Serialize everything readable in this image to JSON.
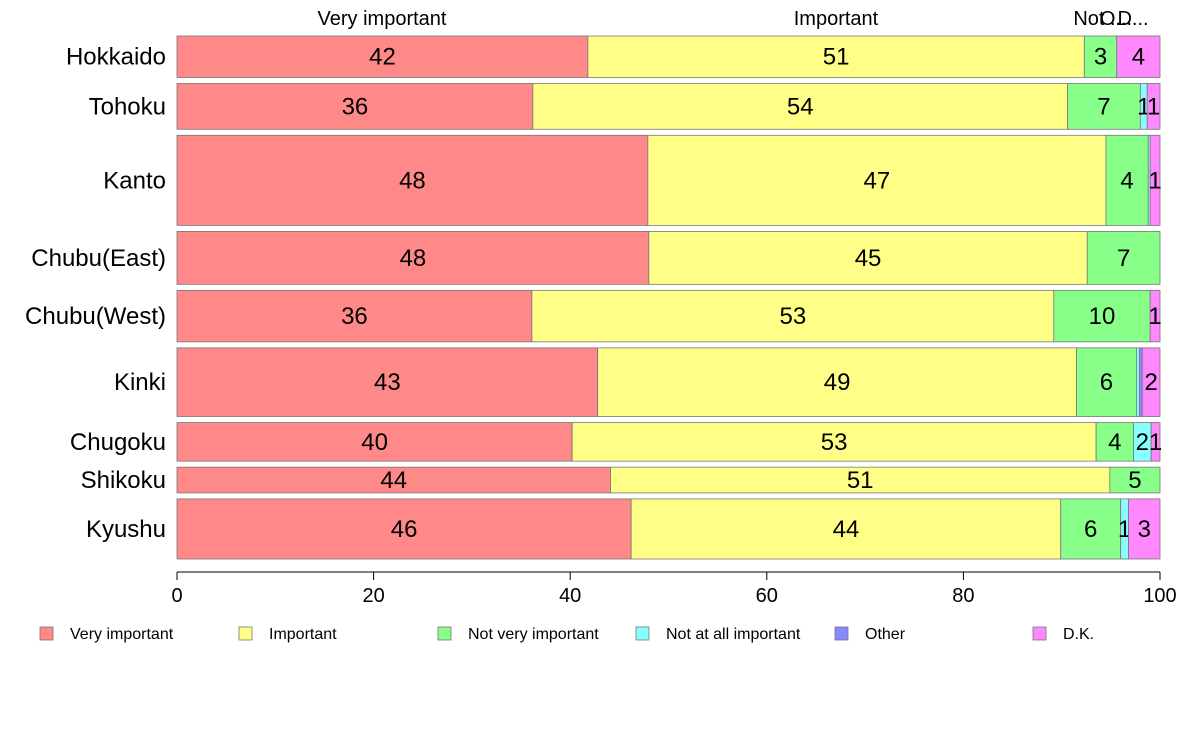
{
  "chart_data": {
    "type": "bar",
    "orientation": "horizontal",
    "stacked": true,
    "percent_stacked": true,
    "categories": [
      "Hokkaido",
      "Tohoku",
      "Kanto",
      "Chubu(East)",
      "Chubu(West)",
      "Kinki",
      "Chugoku",
      "Shikoku",
      "Kyushu"
    ],
    "series": [
      {
        "name": "Very important",
        "color": "#ff8888",
        "values": [
          41.8,
          36.2,
          47.9,
          48.0,
          36.1,
          42.8,
          40.2,
          44.1,
          46.2
        ]
      },
      {
        "name": "Important",
        "color": "#ffff88",
        "values": [
          50.5,
          54.4,
          46.6,
          44.6,
          53.1,
          48.7,
          53.3,
          50.8,
          43.7
        ]
      },
      {
        "name": "Not very important",
        "color": "#88ff88",
        "values": [
          3.3,
          7.4,
          4.3,
          7.4,
          9.8,
          6.1,
          3.8,
          5.1,
          6.1
        ]
      },
      {
        "name": "Not at all important",
        "color": "#88ffff",
        "values": [
          0.0,
          0.7,
          0.2,
          0.0,
          0.0,
          0.3,
          1.8,
          0.0,
          0.8
        ]
      },
      {
        "name": "Other",
        "color": "#8888ff",
        "values": [
          0.0,
          0.0,
          0.0,
          0.0,
          0.0,
          0.3,
          0.0,
          0.0,
          0.0
        ]
      },
      {
        "name": "D.K.",
        "color": "#ff88ff",
        "values": [
          4.4,
          1.3,
          1.0,
          0.0,
          1.0,
          1.8,
          0.9,
          0.0,
          3.2
        ]
      }
    ],
    "value_labels": [
      [
        "42",
        "51",
        "3",
        "",
        "",
        "4"
      ],
      [
        "36",
        "54",
        "7",
        "1",
        "",
        "1"
      ],
      [
        "48",
        "47",
        "4",
        "",
        "",
        "1"
      ],
      [
        "48",
        "45",
        "7",
        "",
        "",
        ""
      ],
      [
        "36",
        "53",
        "10",
        "",
        "",
        "1"
      ],
      [
        "43",
        "49",
        "6",
        "",
        "",
        "2"
      ],
      [
        "40",
        "53",
        "4",
        "2",
        "",
        "1"
      ],
      [
        "44",
        "51",
        "5",
        "",
        "",
        ""
      ],
      [
        "46",
        "44",
        "6",
        "1",
        "",
        "3"
      ]
    ],
    "bar_weights": [
      29,
      32,
      63,
      37,
      36,
      48,
      27,
      18,
      42
    ],
    "top_labels": [
      "Very important",
      "Important",
      "Not ...",
      "O...",
      "D..."
    ],
    "x_ticks": [
      "0",
      "20",
      "40",
      "60",
      "80",
      "100"
    ],
    "xlim": [
      0,
      100
    ],
    "grid": false,
    "legend_position": "bottom",
    "title": "",
    "xlabel": "",
    "ylabel": ""
  }
}
